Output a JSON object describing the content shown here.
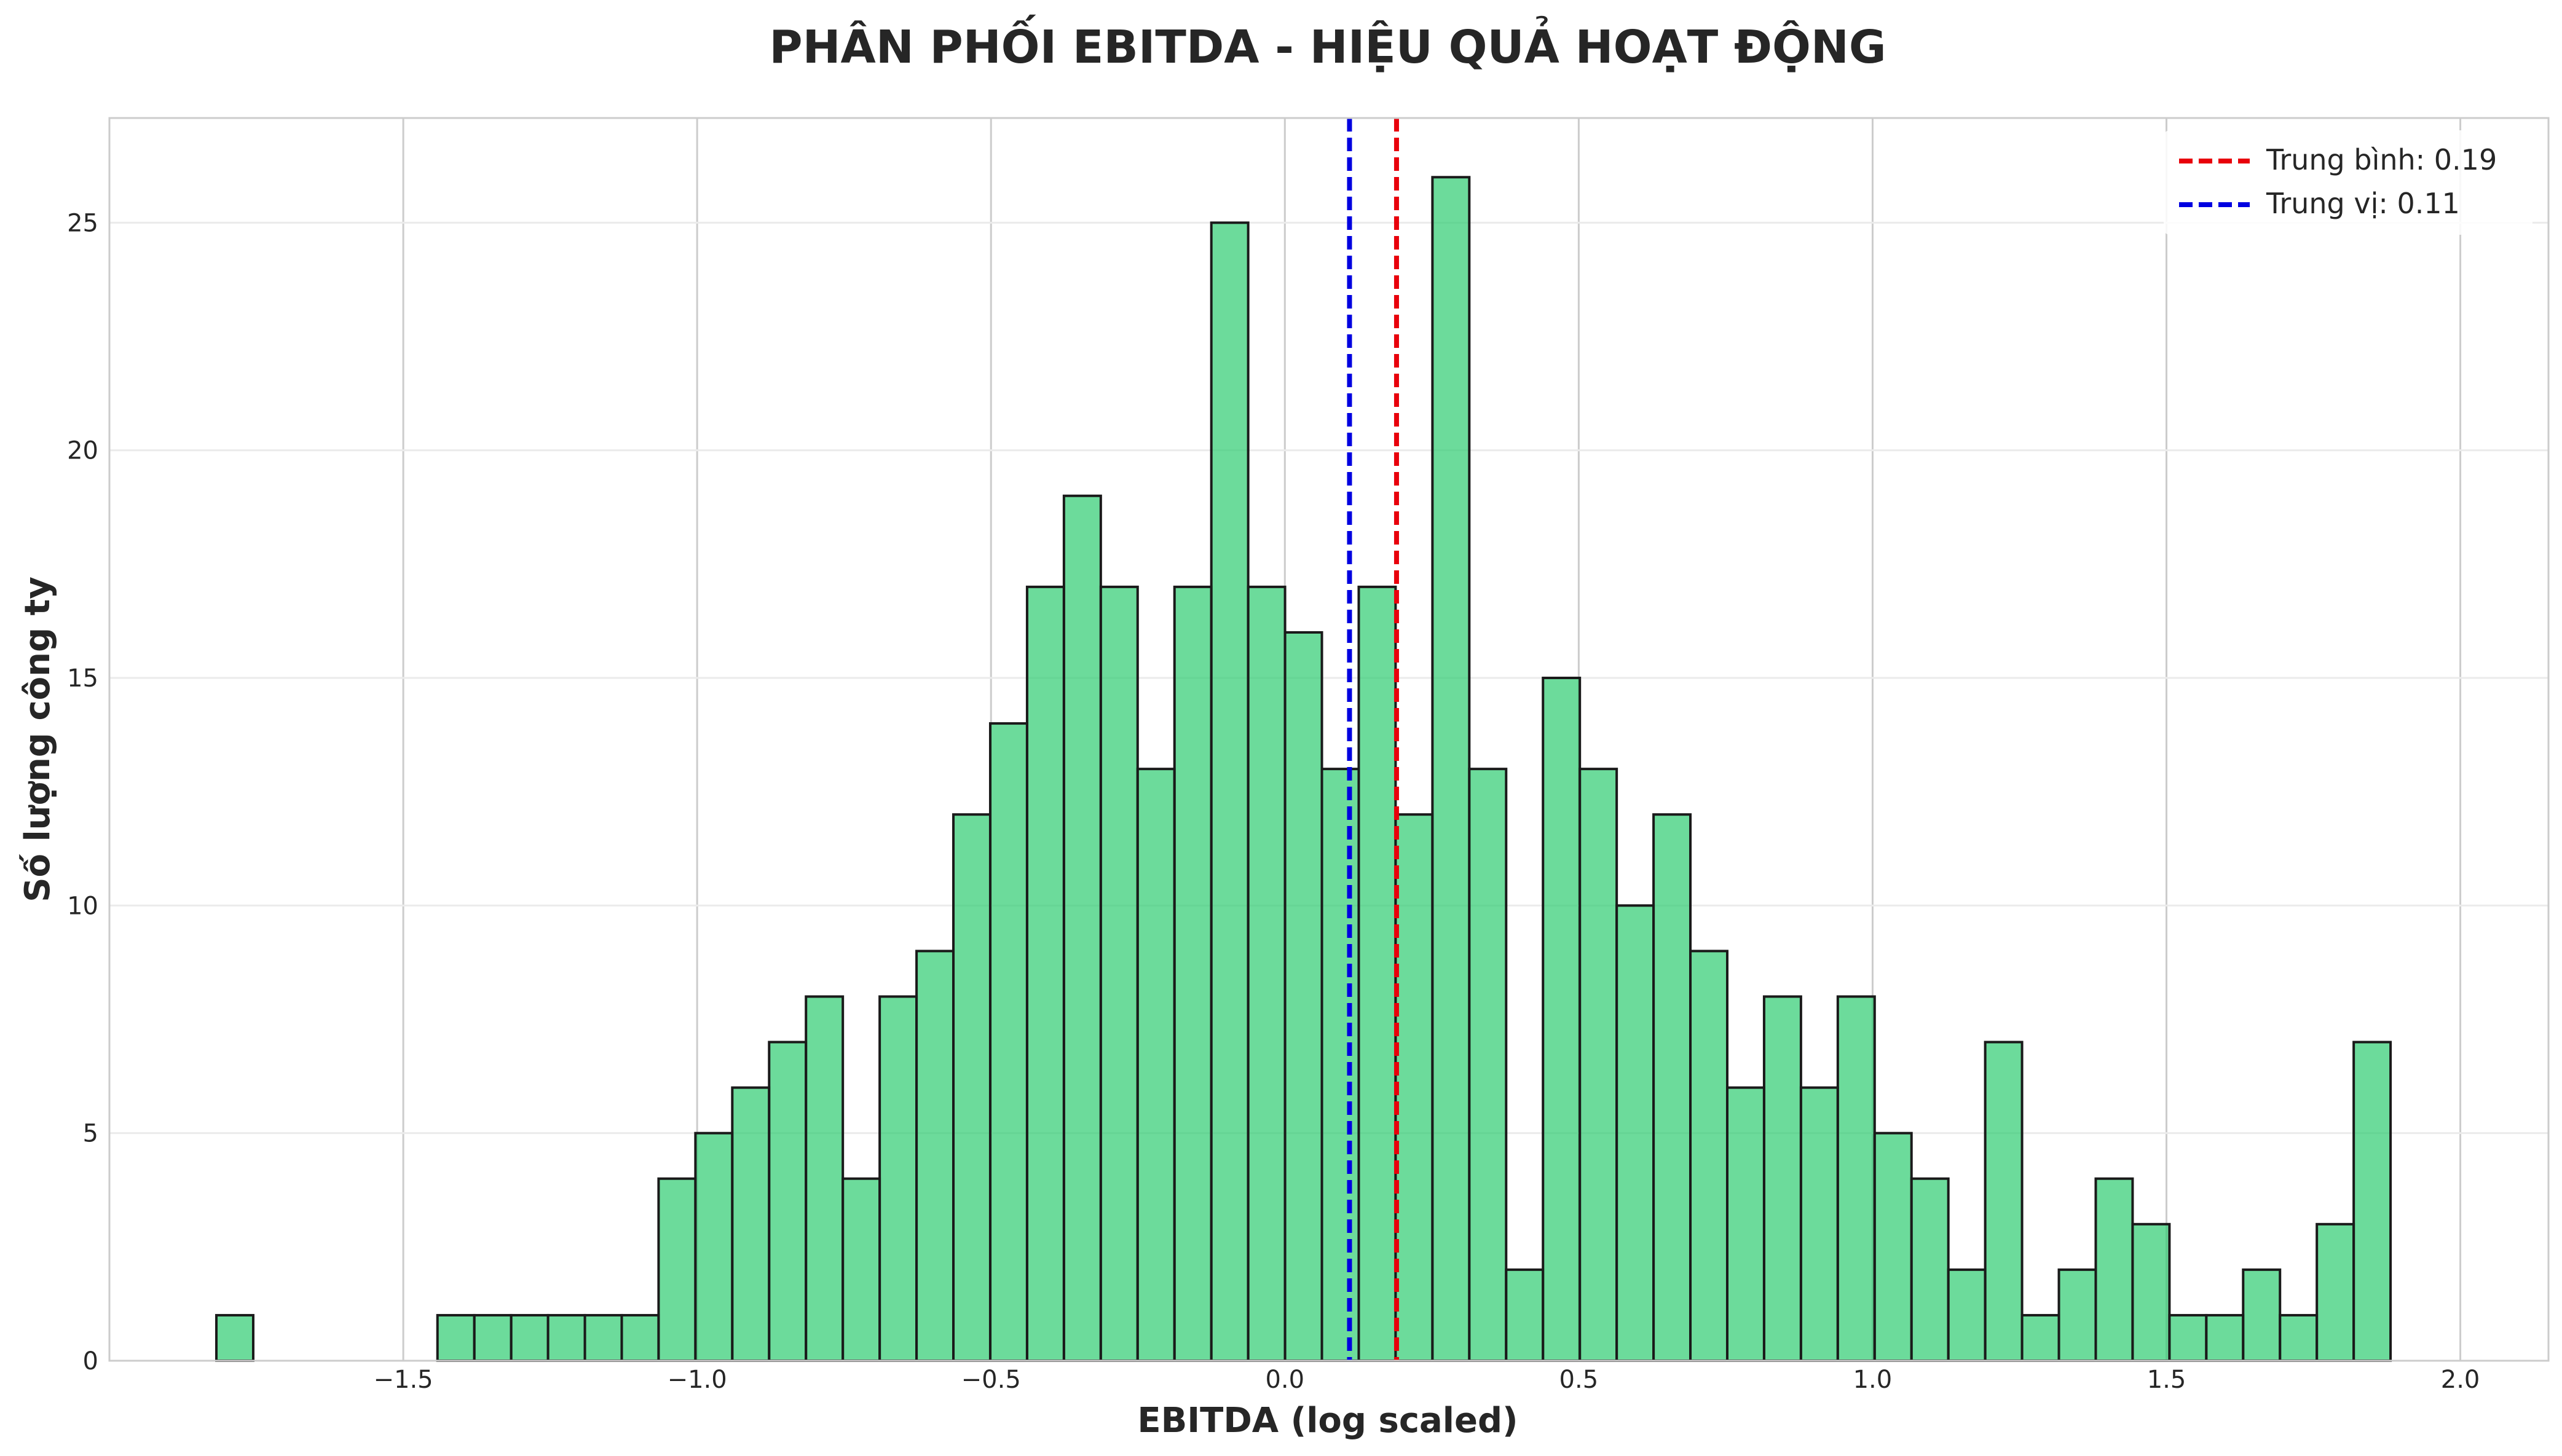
{
  "chart_data": {
    "type": "bar",
    "title": "PHÂN PHỐI EBITDA - HIỆU QUẢ HOẠT ĐỘNG",
    "xlabel": "EBITDA (log scaled)",
    "ylabel": "Số lượng công ty",
    "xlim": [
      -2.0,
      2.15
    ],
    "ylim": [
      0,
      27.3
    ],
    "xticks": [
      -1.5,
      -1.0,
      -0.5,
      0.0,
      0.5,
      1.0,
      1.5,
      2.0
    ],
    "xtick_labels": [
      "−1.5",
      "−1.0",
      "−0.5",
      "0.0",
      "0.5",
      "1.0",
      "1.5",
      "2.0"
    ],
    "yticks": [
      0,
      5,
      10,
      15,
      20,
      25
    ],
    "ytick_labels": [
      "0",
      "5",
      "10",
      "15",
      "20",
      "25"
    ],
    "bin_start": -1.818,
    "bin_width": 0.0627,
    "values": [
      1,
      0,
      0,
      0,
      0,
      0,
      1,
      1,
      1,
      1,
      1,
      1,
      4,
      5,
      6,
      7,
      8,
      4,
      8,
      9,
      12,
      14,
      17,
      19,
      17,
      13,
      17,
      25,
      17,
      16,
      13,
      17,
      12,
      26,
      13,
      2,
      15,
      13,
      10,
      12,
      9,
      6,
      8,
      6,
      8,
      5,
      4,
      2,
      7,
      1,
      2,
      4,
      3,
      1,
      1,
      2,
      1,
      3,
      7
    ],
    "bar_color": "#2ecc71",
    "bar_edge_color": "#1a1a1a",
    "lines": [
      {
        "label": "Trung bình: 0.19",
        "x": 0.19,
        "color": "#e8000b",
        "style": "dashed"
      },
      {
        "label": "Trung vị: 0.11",
        "x": 0.11,
        "color": "#0000e0",
        "style": "dashed"
      }
    ],
    "legend_position": "top-right",
    "grid": true
  }
}
